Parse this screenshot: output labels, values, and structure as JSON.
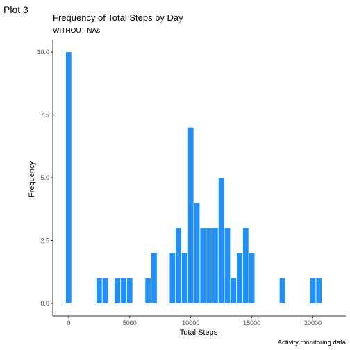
{
  "header": {
    "tag": "Plot 3",
    "caption": "Activity monitoring data"
  },
  "colors": {
    "bar": "#1E90FF",
    "axis": "#333333"
  },
  "chart_data": {
    "type": "bar",
    "title": "Frequency of Total Steps by Day",
    "subtitle": "WITHOUT NAs",
    "xlabel": "Total Steps",
    "ylabel": "Frequency",
    "xlim": [
      -1300,
      22700
    ],
    "ylim": [
      -0.5,
      10.5
    ],
    "bin_width": 500,
    "xticks": [
      0,
      5000,
      10000,
      15000,
      20000
    ],
    "xtick_labels": [
      "0",
      "5000",
      "10000",
      "15000",
      "20000"
    ],
    "yticks": [
      0,
      2.5,
      5,
      7.5,
      10
    ],
    "ytick_labels": [
      "0.0",
      "2.5",
      "5.0",
      "7.5",
      "10.0"
    ],
    "grid": false,
    "bins": [
      {
        "x": 0,
        "count": 10
      },
      {
        "x": 2500,
        "count": 1
      },
      {
        "x": 3000,
        "count": 1
      },
      {
        "x": 4000,
        "count": 1
      },
      {
        "x": 4500,
        "count": 1
      },
      {
        "x": 5000,
        "count": 1
      },
      {
        "x": 6500,
        "count": 1
      },
      {
        "x": 7000,
        "count": 2
      },
      {
        "x": 8500,
        "count": 2
      },
      {
        "x": 9000,
        "count": 3
      },
      {
        "x": 9500,
        "count": 2
      },
      {
        "x": 10000,
        "count": 7
      },
      {
        "x": 10500,
        "count": 4
      },
      {
        "x": 11000,
        "count": 3
      },
      {
        "x": 11500,
        "count": 3
      },
      {
        "x": 12000,
        "count": 3
      },
      {
        "x": 12500,
        "count": 5
      },
      {
        "x": 13000,
        "count": 3
      },
      {
        "x": 13500,
        "count": 1
      },
      {
        "x": 14000,
        "count": 2
      },
      {
        "x": 14500,
        "count": 3
      },
      {
        "x": 15000,
        "count": 2
      },
      {
        "x": 17500,
        "count": 1
      },
      {
        "x": 20000,
        "count": 1
      },
      {
        "x": 20500,
        "count": 1
      }
    ]
  }
}
